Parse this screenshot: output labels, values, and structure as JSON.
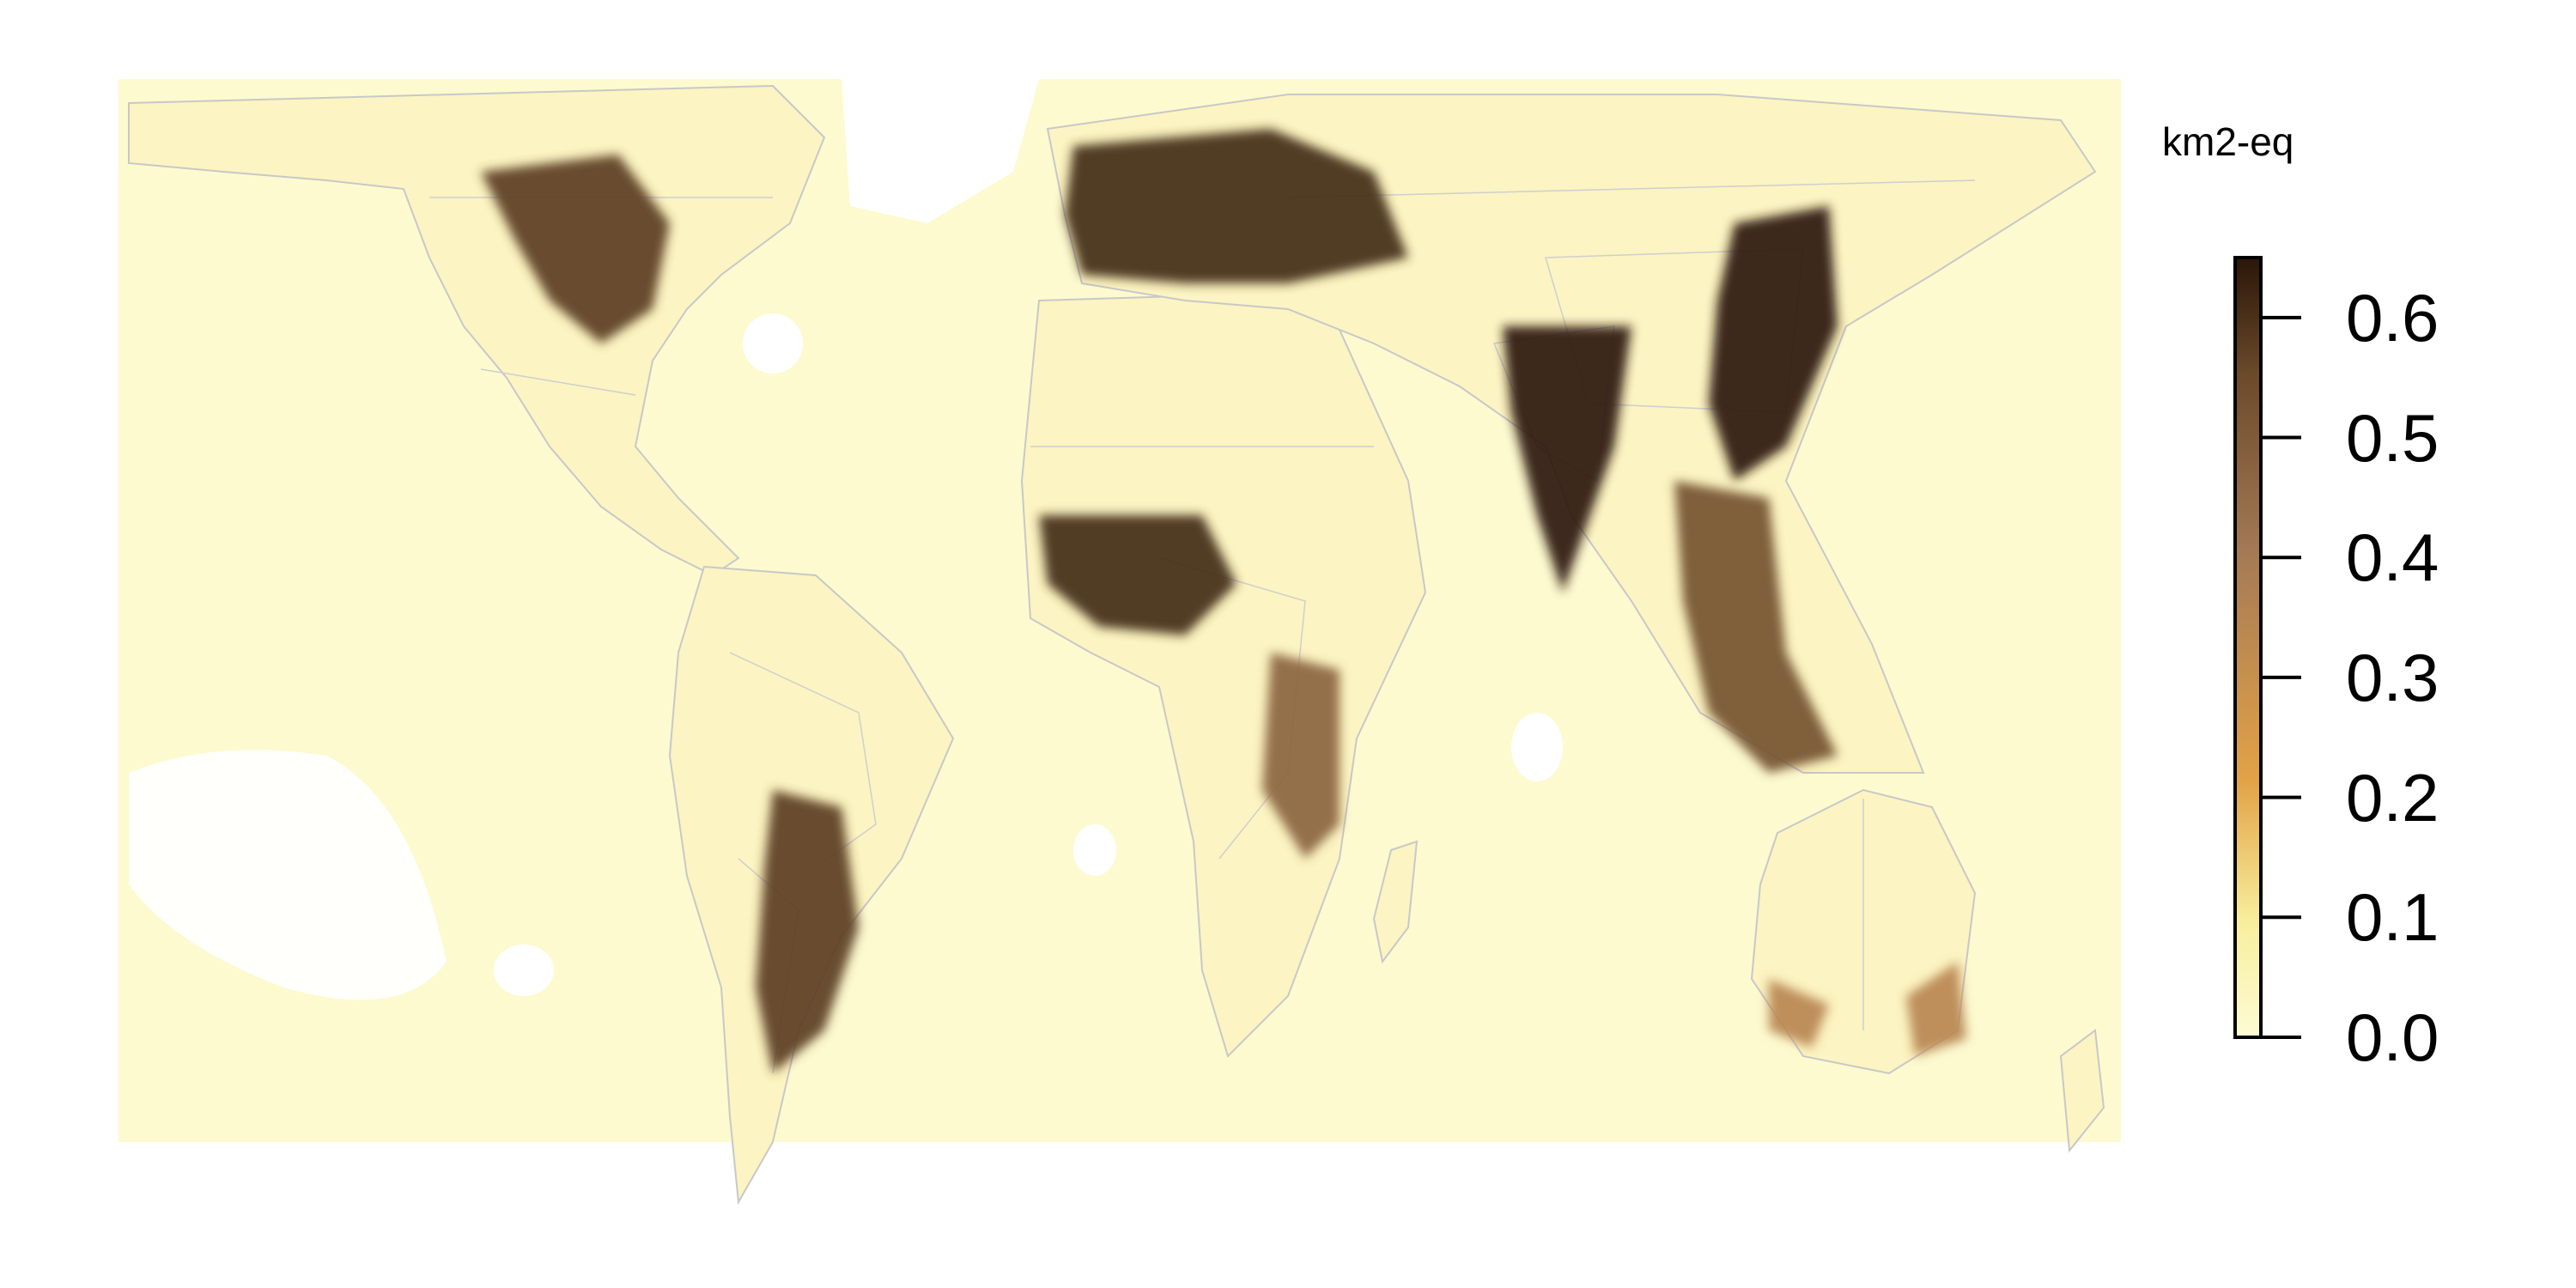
{
  "map": {
    "type": "global raster map",
    "projection": "equal-area world",
    "variable_unit": "km2-eq",
    "color_scale": {
      "min": 0.0,
      "max": 0.65,
      "colors": [
        "#fdfbd4",
        "#f7ee9c",
        "#e2a247",
        "#a57a55",
        "#6b4a2a",
        "#2a1608"
      ]
    },
    "colorbar": {
      "title": "km2-eq",
      "ticks": [
        {
          "value": 0.0,
          "label": "0.0"
        },
        {
          "value": 0.1,
          "label": "0.1"
        },
        {
          "value": 0.2,
          "label": "0.2"
        },
        {
          "value": 0.3,
          "label": "0.3"
        },
        {
          "value": 0.4,
          "label": "0.4"
        },
        {
          "value": 0.5,
          "label": "0.5"
        },
        {
          "value": 0.6,
          "label": "0.6"
        }
      ]
    },
    "hotspots": [
      {
        "name": "central-north-america",
        "level": 0.55
      },
      {
        "name": "europe",
        "level": 0.6
      },
      {
        "name": "west-africa-sahel",
        "level": 0.6
      },
      {
        "name": "india",
        "level": 0.65
      },
      {
        "name": "east-china",
        "level": 0.65
      },
      {
        "name": "southeast-asia",
        "level": 0.5
      },
      {
        "name": "south-america-pampas",
        "level": 0.55
      },
      {
        "name": "east-africa",
        "level": 0.45
      },
      {
        "name": "southeast-australia",
        "level": 0.35
      }
    ]
  }
}
